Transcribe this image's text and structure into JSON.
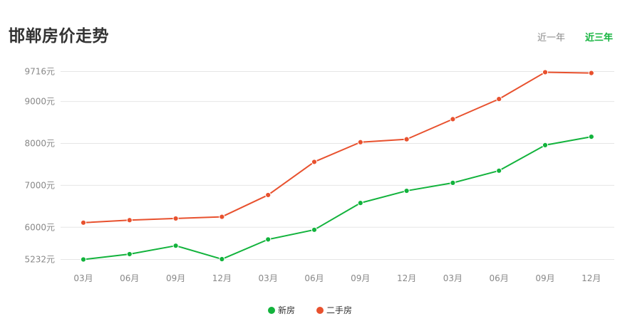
{
  "header": {
    "title": "邯郸房价走势",
    "tabs": [
      {
        "label": "近一年",
        "active": false
      },
      {
        "label": "近三年",
        "active": true
      }
    ]
  },
  "colors": {
    "new_house": "#12b33c",
    "second_hand": "#e8512e",
    "active_tab": "#12b33c",
    "grid": "#e6e6e6",
    "axis_text": "#888888"
  },
  "chart_data": {
    "type": "line",
    "title": "",
    "xlabel": "",
    "ylabel": "",
    "categories": [
      "03月",
      "06月",
      "09月",
      "12月",
      "03月",
      "06月",
      "09月",
      "12月",
      "03月",
      "06月",
      "09月",
      "12月"
    ],
    "yticks": [
      5232,
      6000,
      7000,
      8000,
      9000,
      9716
    ],
    "ytick_labels": [
      "5232元",
      "6000元",
      "7000元",
      "8000元",
      "9000元",
      "9716元"
    ],
    "ylim": [
      5232,
      9716
    ],
    "grid": true,
    "legend_position": "bottom-center",
    "series": [
      {
        "name": "新房",
        "color": "#12b33c",
        "values": [
          5232,
          5360,
          5560,
          5240,
          5710,
          5940,
          6580,
          6870,
          7060,
          7350,
          7960,
          8160
        ]
      },
      {
        "name": "二手房",
        "color": "#e8512e",
        "values": [
          6110,
          6170,
          6210,
          6250,
          6770,
          7560,
          8030,
          8100,
          8580,
          9060,
          9700,
          9680
        ]
      }
    ]
  }
}
